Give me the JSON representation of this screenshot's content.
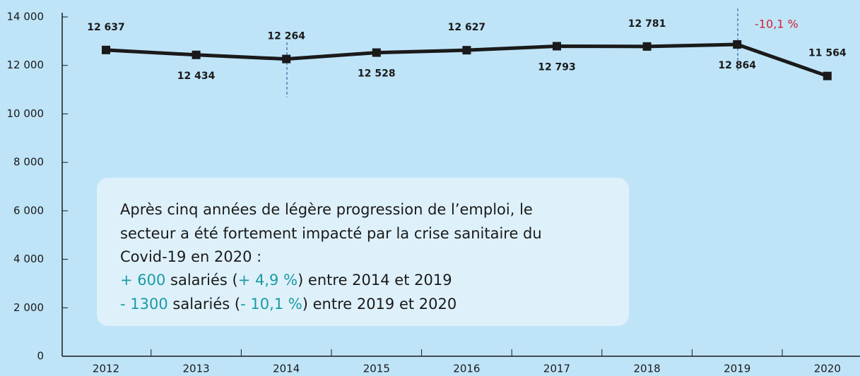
{
  "chart_data": {
    "type": "line",
    "categories": [
      "2012",
      "2013",
      "2014",
      "2015",
      "2016",
      "2017",
      "2018",
      "2019",
      "2020"
    ],
    "values": [
      12637,
      12434,
      12264,
      12528,
      12627,
      12793,
      12781,
      12864,
      11564
    ],
    "value_labels": [
      "12 637",
      "12 434",
      "12 264",
      "12 528",
      "12 627",
      "12 793",
      "12 781",
      "12 864",
      "11 564"
    ],
    "color": "#1a1a1a",
    "ylim": [
      0,
      14000
    ],
    "yticks": [
      0,
      {
        "value": 2000,
        "label": "2 000"
      },
      {
        "value": 4000,
        "label": "4 000"
      },
      {
        "value": 6000,
        "label": "6 000"
      },
      {
        "value": 8000,
        "label": "8 000"
      },
      {
        "value": 10000,
        "label": "10 000"
      },
      {
        "value": 12000,
        "label": "12 000"
      },
      {
        "value": 14000,
        "label": "14 000"
      }
    ],
    "annotation": "-10,1 %",
    "note": {
      "lines": [
        "Après cinq années de légère progression de l’emploi, le",
        "secteur a été fortement impacté par la crise sanitaire du",
        "Covid-19 en 2020 :"
      ],
      "line4": [
        "+ 600",
        " salariés (",
        "+ 4,9 %",
        ") entre 2014 et 2019"
      ],
      "line5": [
        "- 1300",
        " salariés (",
        "- 10,1 %",
        ") entre 2019 et 2020"
      ]
    }
  }
}
